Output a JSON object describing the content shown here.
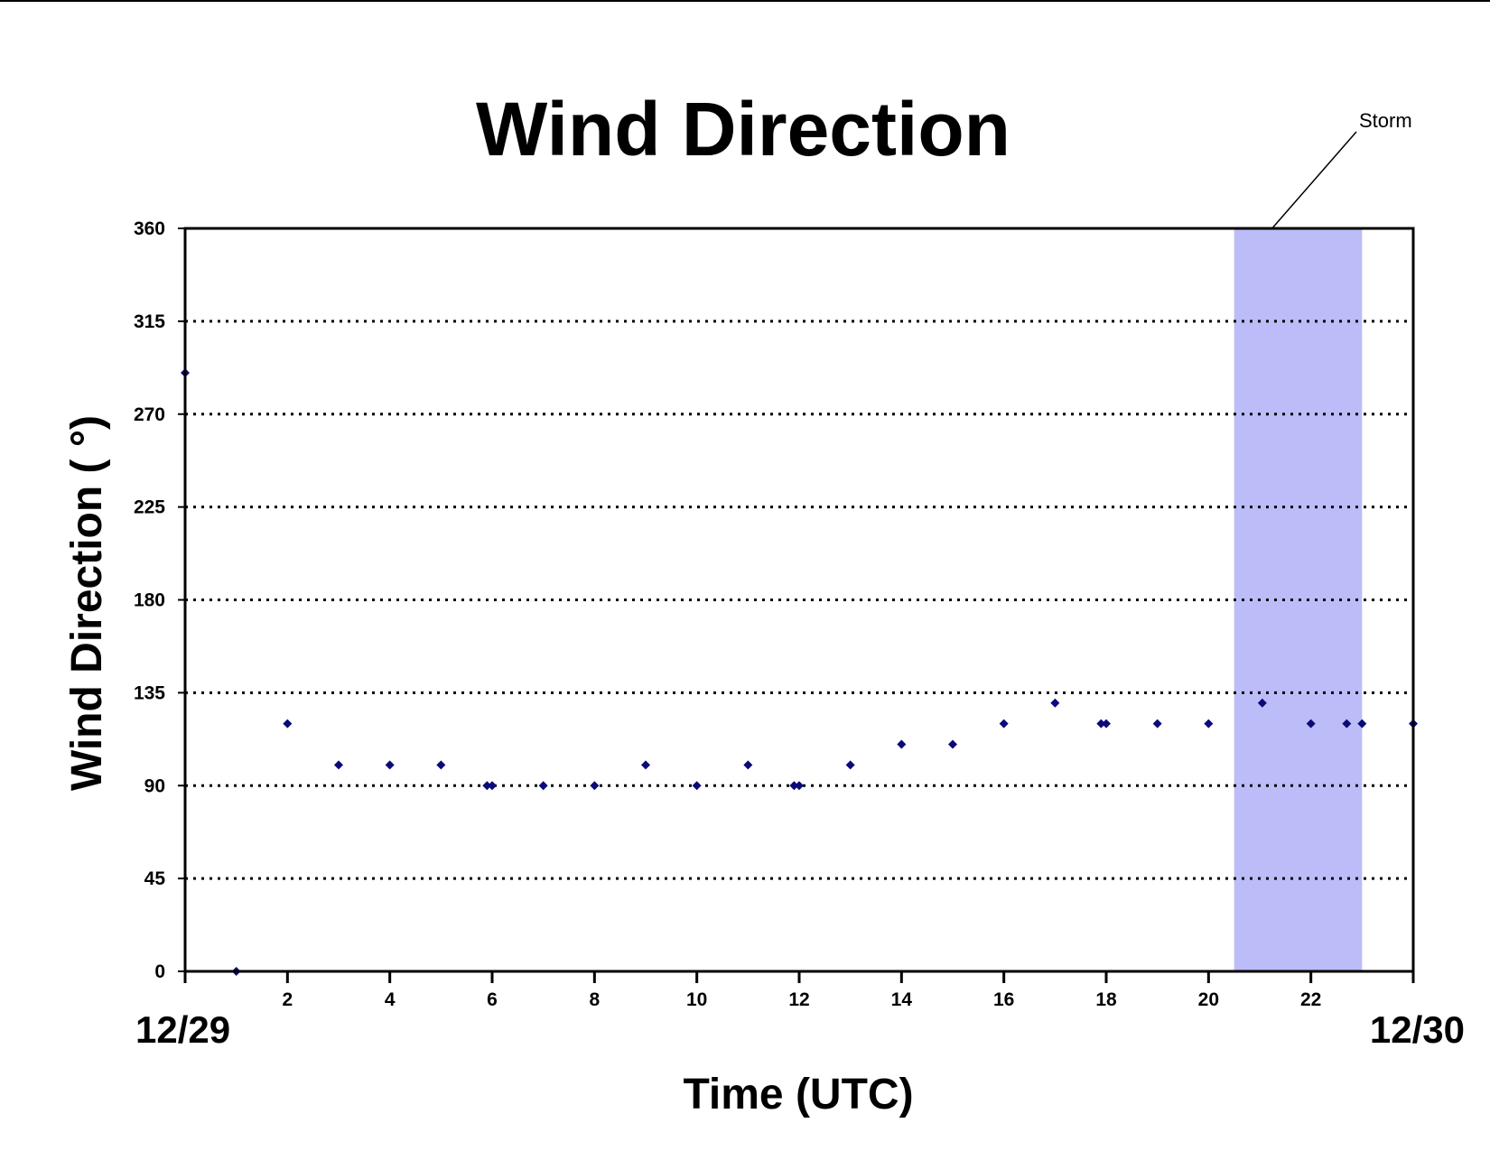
{
  "chart_data": {
    "type": "scatter",
    "title": "Wind Direction",
    "xlabel": "Time (UTC)",
    "ylabel": "Wind Direction ( °)",
    "xlim": [
      0,
      24
    ],
    "ylim": [
      0,
      360
    ],
    "x_ticks": [
      0,
      2,
      4,
      6,
      8,
      10,
      12,
      14,
      16,
      18,
      20,
      22,
      24
    ],
    "x_tick_labels": [
      "",
      "2",
      "4",
      "6",
      "8",
      "10",
      "12",
      "14",
      "16",
      "18",
      "20",
      "22",
      ""
    ],
    "y_ticks": [
      0,
      45,
      90,
      135,
      180,
      225,
      270,
      315,
      360
    ],
    "y_tick_labels": [
      "0",
      "45",
      "90",
      "135",
      "180",
      "225",
      "270",
      "315",
      "360"
    ],
    "grid": "horizontal dotted",
    "date_labels": {
      "start": "12/29",
      "end": "12/30"
    },
    "shaded_region": {
      "label": "Storm",
      "x_start": 20.5,
      "x_end": 23.0,
      "color": "#bcbcf8"
    },
    "marker_color": "#0a0a78",
    "series": [
      {
        "x": [
          0,
          1,
          2,
          3,
          4,
          5,
          5.9,
          6,
          7,
          8,
          9,
          10,
          11,
          11.9,
          12,
          13,
          14,
          15,
          16,
          17,
          17.9,
          18,
          19,
          20,
          21.05,
          22,
          22.7,
          23,
          24
        ],
        "y": [
          290,
          0,
          120,
          100,
          100,
          100,
          90,
          90,
          90,
          90,
          100,
          90,
          100,
          90,
          90,
          100,
          110,
          110,
          120,
          130,
          120,
          120,
          120,
          120,
          130,
          120,
          120,
          120,
          120
        ]
      }
    ]
  }
}
